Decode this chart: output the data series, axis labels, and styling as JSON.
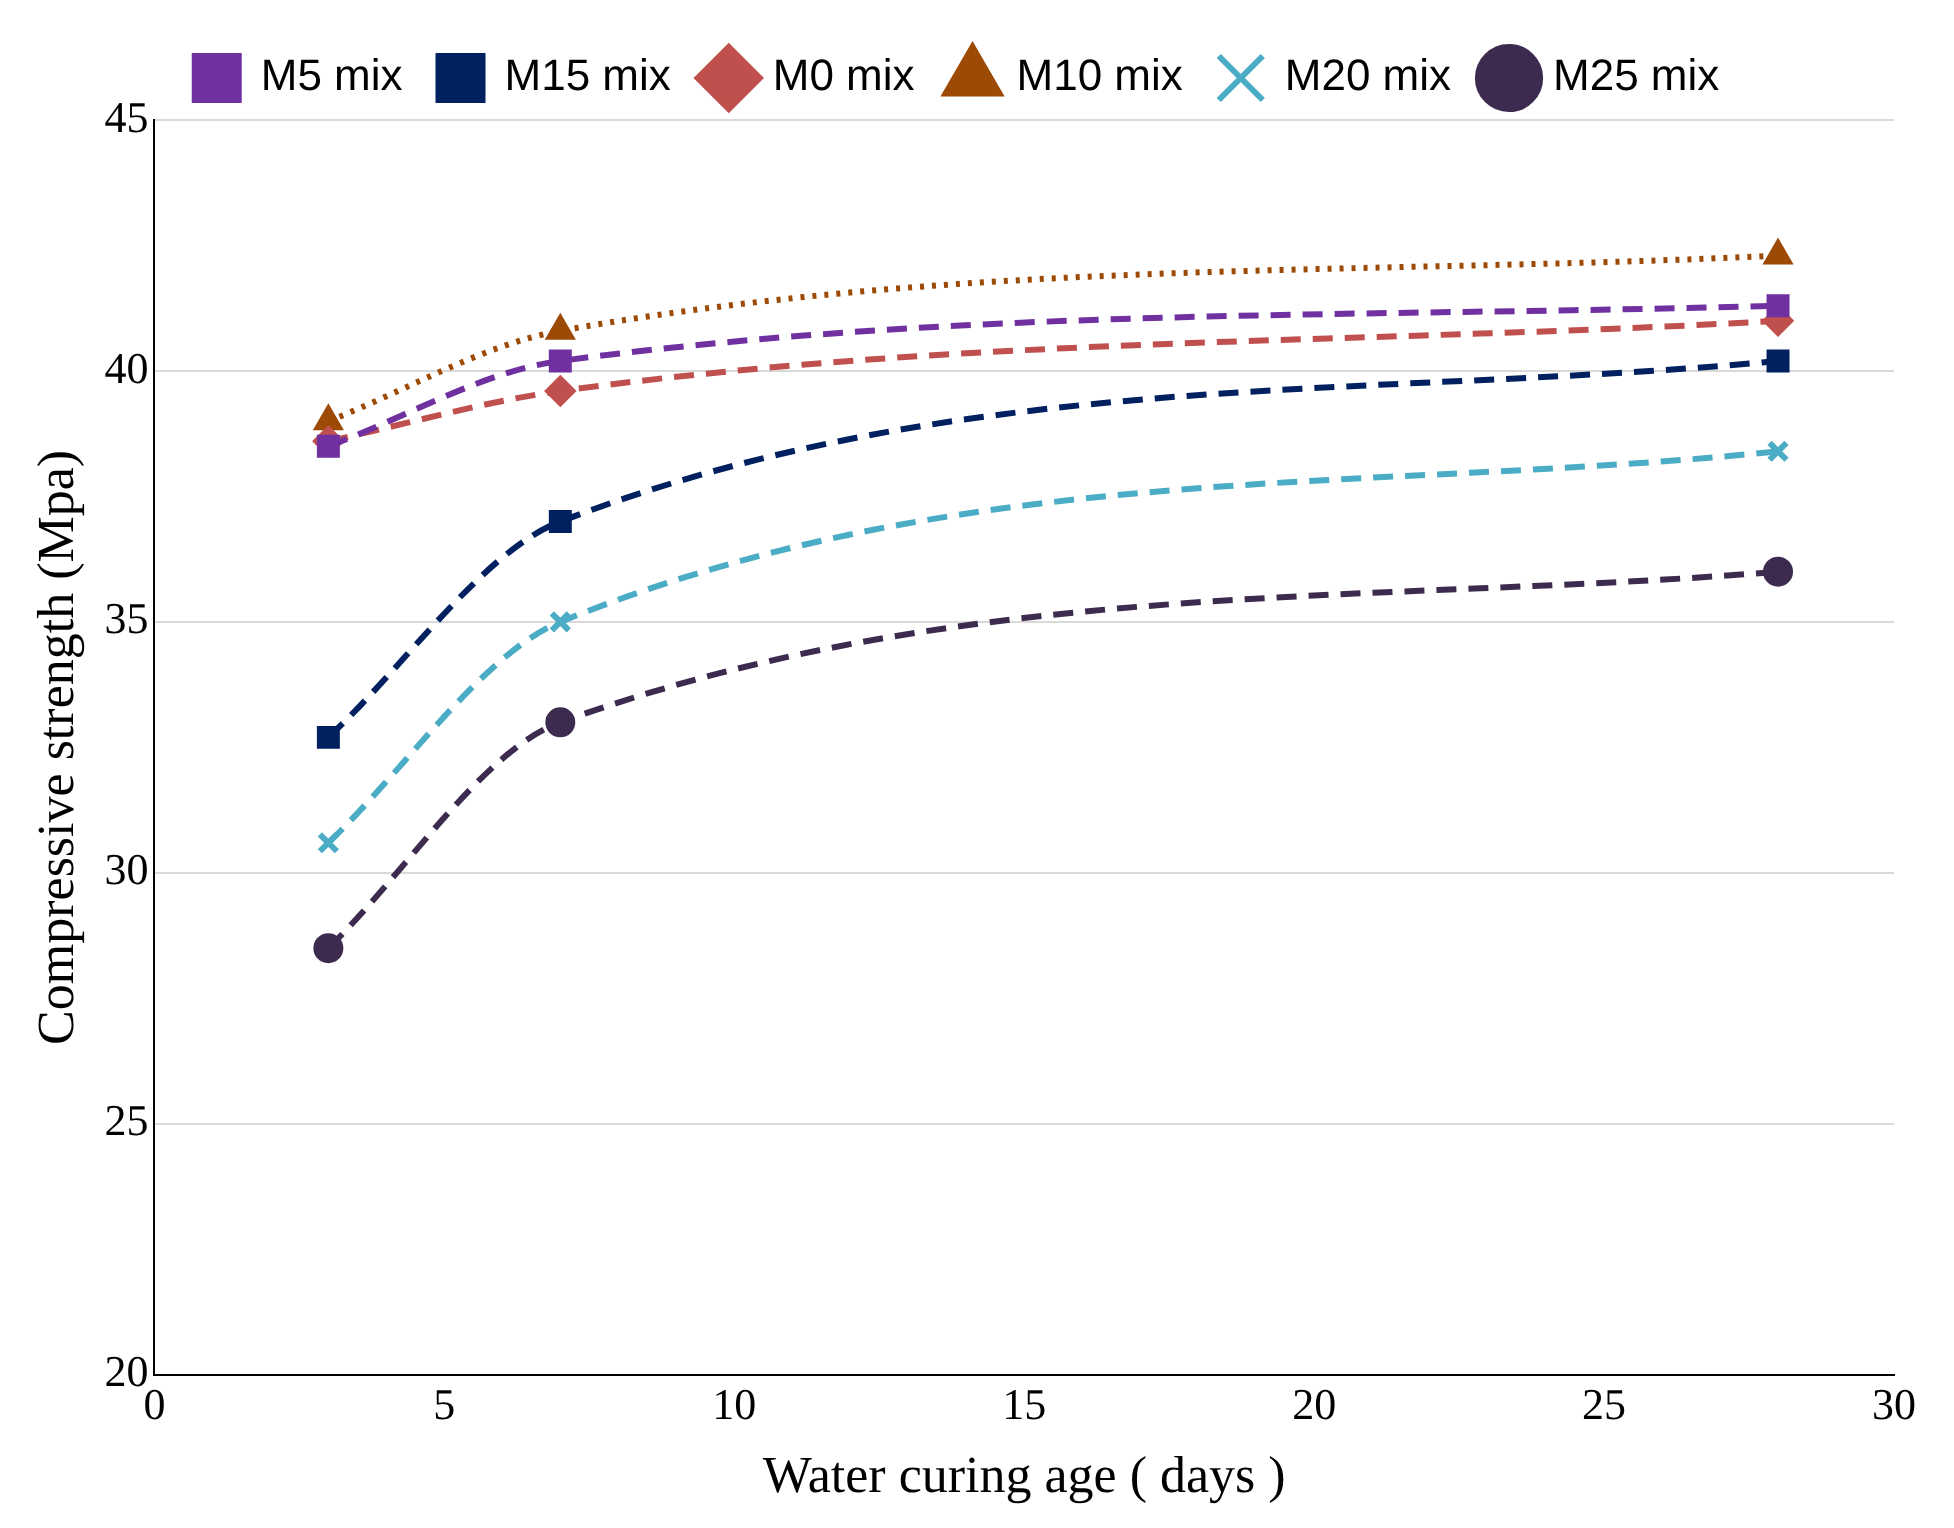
{
  "chart_data": {
    "type": "line",
    "xlabel": "Water curing age ( days )",
    "ylabel": "Compressive strength (Mpa)",
    "x": [
      3,
      7,
      28
    ],
    "series": [
      {
        "name": "M0 mix",
        "color": "#c0504d",
        "values": [
          38.6,
          39.6,
          41.0
        ],
        "marker": "diamond",
        "line_style": "dashed"
      },
      {
        "name": "M5 mix",
        "color": "#7030a0",
        "values": [
          38.5,
          40.2,
          41.3
        ],
        "marker": "square",
        "line_style": "dashed"
      },
      {
        "name": "M10 mix",
        "color": "#9c4a06",
        "values": [
          39.0,
          40.8,
          42.3
        ],
        "marker": "triangle",
        "line_style": "dotted"
      },
      {
        "name": "M15 mix",
        "color": "#002060",
        "values": [
          32.7,
          37.0,
          40.2
        ],
        "marker": "square",
        "line_style": "dashed"
      },
      {
        "name": "M20 mix",
        "color": "#4bacc6",
        "values": [
          30.6,
          35.0,
          38.4
        ],
        "marker": "cross",
        "line_style": "dashed"
      },
      {
        "name": "M25 mix",
        "color": "#3d2b4f",
        "values": [
          28.5,
          33.0,
          36.0
        ],
        "marker": "circle",
        "line_style": "dashed"
      }
    ],
    "xlim": [
      0,
      30
    ],
    "xticks": [
      0,
      5,
      10,
      15,
      20,
      25,
      30
    ],
    "ylim": [
      20,
      45
    ],
    "yticks": [
      20,
      25,
      30,
      35,
      40,
      45
    ],
    "grid": "y",
    "legend": "top"
  }
}
